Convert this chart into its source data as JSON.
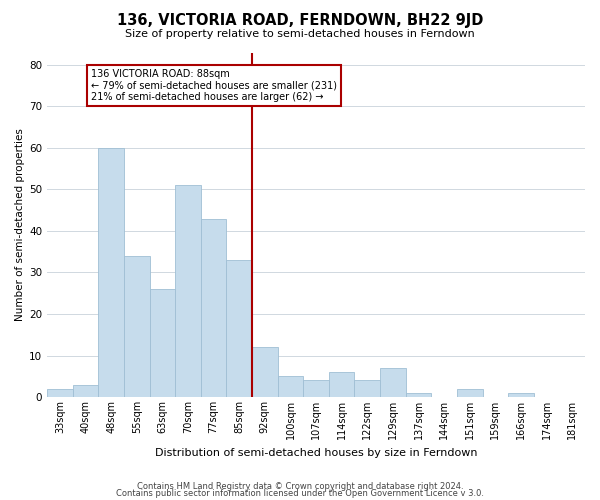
{
  "title": "136, VICTORIA ROAD, FERNDOWN, BH22 9JD",
  "subtitle": "Size of property relative to semi-detached houses in Ferndown",
  "xlabel": "Distribution of semi-detached houses by size in Ferndown",
  "ylabel": "Number of semi-detached properties",
  "footer_line1": "Contains HM Land Registry data © Crown copyright and database right 2024.",
  "footer_line2": "Contains public sector information licensed under the Open Government Licence v 3.0.",
  "bin_labels": [
    "33sqm",
    "40sqm",
    "48sqm",
    "55sqm",
    "63sqm",
    "70sqm",
    "77sqm",
    "85sqm",
    "92sqm",
    "100sqm",
    "107sqm",
    "114sqm",
    "122sqm",
    "129sqm",
    "137sqm",
    "144sqm",
    "151sqm",
    "159sqm",
    "166sqm",
    "174sqm",
    "181sqm"
  ],
  "bar_heights": [
    2,
    3,
    60,
    34,
    26,
    51,
    43,
    33,
    12,
    5,
    4,
    6,
    4,
    7,
    1,
    0,
    2,
    0,
    1,
    0,
    0
  ],
  "bar_color": "#c6dcec",
  "bar_edge_color": "#a0bfd4",
  "vline_bar_index": 7,
  "vline_color": "#aa0000",
  "annotation_text": "136 VICTORIA ROAD: 88sqm\n← 79% of semi-detached houses are smaller (231)\n21% of semi-detached houses are larger (62) →",
  "annotation_box_color": "#ffffff",
  "annotation_box_edge": "#aa0000",
  "ylim": [
    0,
    83
  ],
  "yticks": [
    0,
    10,
    20,
    30,
    40,
    50,
    60,
    70,
    80
  ],
  "background_color": "#ffffff",
  "grid_color": "#d0d8e0"
}
